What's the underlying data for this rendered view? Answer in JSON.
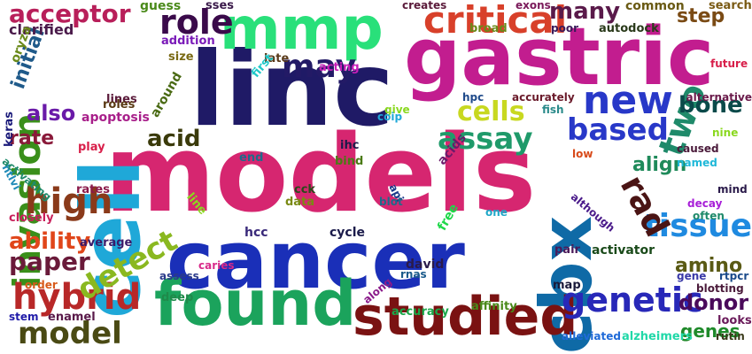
{
  "words": [
    {
      "text": "models",
      "color": "#d62670"
    },
    {
      "text": "linc",
      "color": "#1f1a66"
    },
    {
      "text": "cancer",
      "color": "#1a2fb8"
    },
    {
      "text": "gastric",
      "color": "#c21d8f"
    },
    {
      "text": "cell",
      "color": "#1fa8d8"
    },
    {
      "text": "cbx",
      "color": "#0f6aa6"
    },
    {
      "text": "found",
      "color": "#1ba35c"
    },
    {
      "text": "mmp",
      "color": "#29e07a"
    },
    {
      "text": "studied",
      "color": "#7a1212"
    },
    {
      "text": "invasion",
      "color": "#3a8f1a"
    },
    {
      "text": "critical",
      "color": "#d8402a"
    },
    {
      "text": "may",
      "color": "#231a66"
    },
    {
      "text": "role",
      "color": "#3a0a4a"
    },
    {
      "text": "new",
      "color": "#2838c8"
    },
    {
      "text": "based",
      "color": "#2838c8"
    },
    {
      "text": "assay",
      "color": "#1f9a6a"
    },
    {
      "text": "genetic",
      "color": "#2828b8"
    },
    {
      "text": "high",
      "color": "#8a3a1a"
    },
    {
      "text": "hybrid",
      "color": "#b82828"
    },
    {
      "text": "model",
      "color": "#4a4a14"
    },
    {
      "text": "detect",
      "color": "#8ab820"
    },
    {
      "text": "tissue",
      "color": "#1f8ae0"
    },
    {
      "text": "cells",
      "color": "#c8d820"
    },
    {
      "text": "two",
      "color": "#1f8a6a"
    },
    {
      "text": "rad",
      "color": "#4a1414"
    },
    {
      "text": "acceptor",
      "color": "#b81f5a"
    },
    {
      "text": "many",
      "color": "#5a1a4a"
    },
    {
      "text": "paper",
      "color": "#6a1a3a"
    },
    {
      "text": "ability",
      "color": "#e0461a"
    },
    {
      "text": "acid",
      "color": "#3a3a0a"
    },
    {
      "text": "also",
      "color": "#6a1aa8"
    },
    {
      "text": "rate",
      "color": "#8a1a3a"
    },
    {
      "text": "initial",
      "color": "#1f5a8a"
    },
    {
      "text": "bone",
      "color": "#0a4a4a"
    },
    {
      "text": "align",
      "color": "#1f8a5a"
    },
    {
      "text": "step",
      "color": "#7a4a14"
    },
    {
      "text": "donor",
      "color": "#4a0a5a"
    },
    {
      "text": "genes",
      "color": "#1f8a2a"
    },
    {
      "text": "amino",
      "color": "#5a5a14"
    },
    {
      "text": "clarified",
      "color": "#4a1a4a"
    },
    {
      "text": "oryza",
      "color": "#6a8a1a"
    },
    {
      "text": "keras",
      "color": "#1a1a7a"
    },
    {
      "text": "htlvi",
      "color": "#1f8ab8"
    },
    {
      "text": "closely",
      "color": "#c81f5a"
    },
    {
      "text": "order",
      "color": "#d85a1a"
    },
    {
      "text": "stem",
      "color": "#1f1aa8"
    },
    {
      "text": "enamel",
      "color": "#5a1a4a"
    },
    {
      "text": "guess",
      "color": "#4a8a1a"
    },
    {
      "text": "sses",
      "color": "#3a1a4a"
    },
    {
      "text": "addition",
      "color": "#7a1ab8"
    },
    {
      "text": "size",
      "color": "#7a6a14"
    },
    {
      "text": "lines",
      "color": "#5a1a3a"
    },
    {
      "text": "apoptosis",
      "color": "#a81f8a"
    },
    {
      "text": "roles",
      "color": "#5a3a14"
    },
    {
      "text": "around",
      "color": "#4a6a14"
    },
    {
      "text": "play",
      "color": "#d81f4a"
    },
    {
      "text": "activating",
      "color": "#1f8a6a"
    },
    {
      "text": "rates",
      "color": "#8a1a4a"
    },
    {
      "text": "average",
      "color": "#3a1a6a"
    },
    {
      "text": "assess",
      "color": "#2a3a8a"
    },
    {
      "text": "caries",
      "color": "#d82a8a"
    },
    {
      "text": "deep",
      "color": "#1f8a4a"
    },
    {
      "text": "late",
      "color": "#5a3a1a"
    },
    {
      "text": "first",
      "color": "#20c8c8"
    },
    {
      "text": "acting",
      "color": "#c81fb8"
    },
    {
      "text": "end",
      "color": "#1f6a8a"
    },
    {
      "text": "line",
      "color": "#8ad81f"
    },
    {
      "text": "cck",
      "color": "#2a4a1a"
    },
    {
      "text": "data",
      "color": "#7a8a14"
    },
    {
      "text": "hcc",
      "color": "#3a2a7a"
    },
    {
      "text": "cycle",
      "color": "#1a1a4a"
    },
    {
      "text": "ihc",
      "color": "#1a1a4a"
    },
    {
      "text": "bind",
      "color": "#4a7a14"
    },
    {
      "text": "acids",
      "color": "#6a1a6a"
    },
    {
      "text": "api",
      "color": "#1a3a8a"
    },
    {
      "text": "blot",
      "color": "#1f6a8a"
    },
    {
      "text": "free",
      "color": "#20d84a"
    },
    {
      "text": "david",
      "color": "#2a1a4a"
    },
    {
      "text": "rnas",
      "color": "#1a5a8a"
    },
    {
      "text": "along",
      "color": "#8a1a8a"
    },
    {
      "text": "accuracy",
      "color": "#1aa84a"
    },
    {
      "text": "affinity",
      "color": "#4a8a1a"
    },
    {
      "text": "creates",
      "color": "#5a1a3a"
    },
    {
      "text": "broad",
      "color": "#6a8a1a"
    },
    {
      "text": "exons",
      "color": "#7a1a5a"
    },
    {
      "text": "poor",
      "color": "#3a1a5a"
    },
    {
      "text": "autodock",
      "color": "#2a3a1a"
    },
    {
      "text": "common",
      "color": "#6a5a14"
    },
    {
      "text": "search",
      "color": "#7a5a14"
    },
    {
      "text": "hpc",
      "color": "#1f4a8a"
    },
    {
      "text": "accurately",
      "color": "#6a1a2a"
    },
    {
      "text": "give",
      "color": "#8ad81f"
    },
    {
      "text": "coip",
      "color": "#1fa8d8"
    },
    {
      "text": "fish",
      "color": "#2a8a8a"
    },
    {
      "text": "one",
      "color": "#1fa8c8"
    },
    {
      "text": "pair",
      "color": "#4a1a5a"
    },
    {
      "text": "activator",
      "color": "#1a4a1a"
    },
    {
      "text": "map",
      "color": "#1a1a3a"
    },
    {
      "text": "future",
      "color": "#d81f4a"
    },
    {
      "text": "alternative",
      "color": "#6a1a4a"
    },
    {
      "text": "nine",
      "color": "#8ad81f"
    },
    {
      "text": "low",
      "color": "#d84a1a"
    },
    {
      "text": "caused",
      "color": "#4a1a3a"
    },
    {
      "text": "named",
      "color": "#1fb8d8"
    },
    {
      "text": "mind",
      "color": "#2a1a4a"
    },
    {
      "text": "although",
      "color": "#4a1a8a"
    },
    {
      "text": "decay",
      "color": "#a81fd8"
    },
    {
      "text": "often",
      "color": "#1f8a6a"
    },
    {
      "text": "gene",
      "color": "#3a3aa8"
    },
    {
      "text": "rtpcr",
      "color": "#1a4a8a"
    },
    {
      "text": "blotting",
      "color": "#4a1a3a"
    },
    {
      "text": "looks",
      "color": "#6a1a5a"
    },
    {
      "text": "rutin",
      "color": "#3a3a1a"
    },
    {
      "text": "alleviated",
      "color": "#1f6ad8"
    },
    {
      "text": "alzheimers",
      "color": "#20d8a8"
    }
  ]
}
